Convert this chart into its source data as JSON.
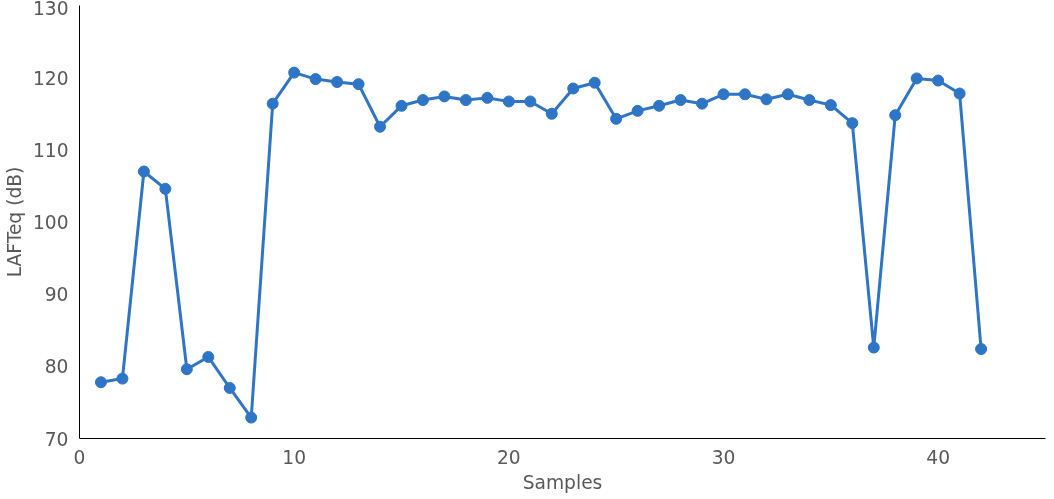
{
  "chart_data": {
    "type": "line",
    "xlabel": "Samples",
    "ylabel": "LAFTeq (dB)",
    "x": [
      1,
      2,
      3,
      4,
      5,
      6,
      7,
      8,
      9,
      10,
      11,
      12,
      13,
      14,
      15,
      16,
      17,
      18,
      19,
      20,
      21,
      22,
      23,
      24,
      25,
      26,
      27,
      28,
      29,
      30,
      31,
      32,
      33,
      34,
      35,
      36,
      37,
      38,
      39,
      40,
      41,
      42
    ],
    "series": [
      {
        "color": "#2e75c6",
        "values": [
          77.8,
          78.3,
          107.0,
          104.6,
          79.6,
          81.3,
          77.0,
          72.9,
          116.4,
          120.7,
          119.8,
          119.4,
          119.1,
          113.2,
          116.1,
          116.9,
          117.4,
          116.9,
          117.2,
          116.7,
          116.7,
          115.0,
          118.5,
          119.3,
          114.3,
          115.4,
          116.1,
          116.9,
          116.4,
          117.7,
          117.7,
          117.0,
          117.7,
          116.9,
          116.2,
          113.7,
          82.6,
          114.8,
          119.9,
          119.6,
          117.8,
          82.4
        ]
      }
    ],
    "xlim": [
      0,
      45
    ],
    "xticks": [
      0,
      10,
      20,
      30,
      40
    ],
    "ylim": [
      70,
      130
    ],
    "yticks": [
      70,
      80,
      90,
      100,
      110,
      120,
      130
    ],
    "grid": false,
    "marker": "circle",
    "line_style": "solid"
  }
}
